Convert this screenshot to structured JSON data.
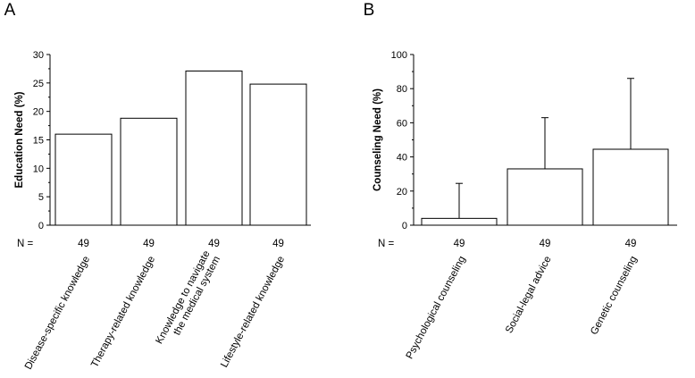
{
  "chart_data": [
    {
      "panel": "A",
      "type": "bar",
      "ylabel": "Education Need (%)",
      "ylim": [
        0,
        30
      ],
      "yticks": [
        0,
        5,
        10,
        15,
        20,
        25,
        30
      ],
      "n_label": "N =",
      "categories": [
        {
          "label": [
            "Disease-specific knowledge"
          ],
          "value": 16,
          "n": "49"
        },
        {
          "label": [
            "Therapy-related knowledge"
          ],
          "value": 18.8,
          "n": "49"
        },
        {
          "label": [
            "Knowledge to navigate",
            "the medical system"
          ],
          "value": 27.1,
          "n": "49"
        },
        {
          "label": [
            "Lifestyle-related knowledge"
          ],
          "value": 24.8,
          "n": "49"
        }
      ]
    },
    {
      "panel": "B",
      "type": "bar",
      "ylabel": "Counseling Need (%)",
      "ylim": [
        0,
        100
      ],
      "yticks": [
        0,
        20,
        40,
        60,
        80,
        100
      ],
      "n_label": "N =",
      "categories": [
        {
          "label": [
            "Psychological counseling"
          ],
          "value": 4,
          "error_upper": 24.5,
          "n": "49"
        },
        {
          "label": [
            "Social-legal advice"
          ],
          "value": 33,
          "error_upper": 63,
          "n": "49"
        },
        {
          "label": [
            "Genetic counseling"
          ],
          "value": 44.5,
          "error_upper": 86,
          "n": "49"
        }
      ]
    }
  ]
}
